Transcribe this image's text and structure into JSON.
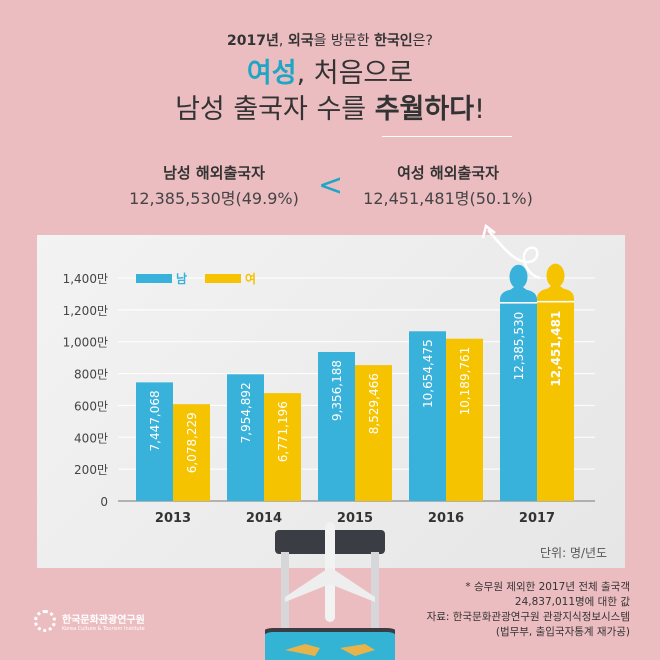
{
  "header": {
    "subtitle_parts": [
      "2017년",
      ", ",
      "외국",
      "을 방문한 ",
      "한국인",
      "은?"
    ],
    "title_line1_accent": "여성",
    "title_line1_rest": ", 처음으로",
    "title_line2_plain": "남성 출국자 수를 ",
    "title_line2_bold": "추월하다",
    "title_line2_end": "!"
  },
  "comparison": {
    "male_label": "남성 해외출국자",
    "male_value": "12,385,530명(49.9%)",
    "sign": "<",
    "female_label": "여성 해외출국자",
    "female_value": "12,451,481명(50.1%)"
  },
  "colors": {
    "male": "#38b1db",
    "female": "#f5c300",
    "accent": "#1fa6c4",
    "background": "#ebbdc1"
  },
  "chart_data": {
    "type": "bar",
    "categories": [
      "2013",
      "2014",
      "2015",
      "2016",
      "2017"
    ],
    "series": [
      {
        "name": "남",
        "values": [
          7447068,
          7954892,
          9356188,
          10654475,
          12385530
        ],
        "labels": [
          "7,447,068",
          "7,954,892",
          "9,356,188",
          "10,654,475",
          "12,385,530"
        ]
      },
      {
        "name": "여",
        "values": [
          6078229,
          6771196,
          8529466,
          10189761,
          12451481
        ],
        "labels": [
          "6,078,229",
          "6,771,196",
          "8,529,466",
          "10,189,761",
          "12,451,481"
        ]
      }
    ],
    "ylim": [
      0,
      14000000
    ],
    "yticks": [
      0,
      2000000,
      4000000,
      6000000,
      8000000,
      10000000,
      12000000,
      14000000
    ],
    "ytick_labels": [
      "0",
      "200만",
      "400만",
      "600만",
      "800만",
      "1,000만",
      "1,200만",
      "1,400만"
    ],
    "legend": "top-left",
    "grid": true,
    "unit_note": "단위: 명/년도"
  },
  "notes": {
    "line1": "* 승무원 제외한 2017년 전체 출국객",
    "line2": "24,837,011명에 대한 값",
    "line3": "자료: 한국문화관광연구원 관광지식정보시스템",
    "line4": "(법무부, 출입국자통계 재가공)"
  },
  "logo": {
    "name": "한국문화관광연구원",
    "english": "Korea Culture & Tourism Institute"
  }
}
